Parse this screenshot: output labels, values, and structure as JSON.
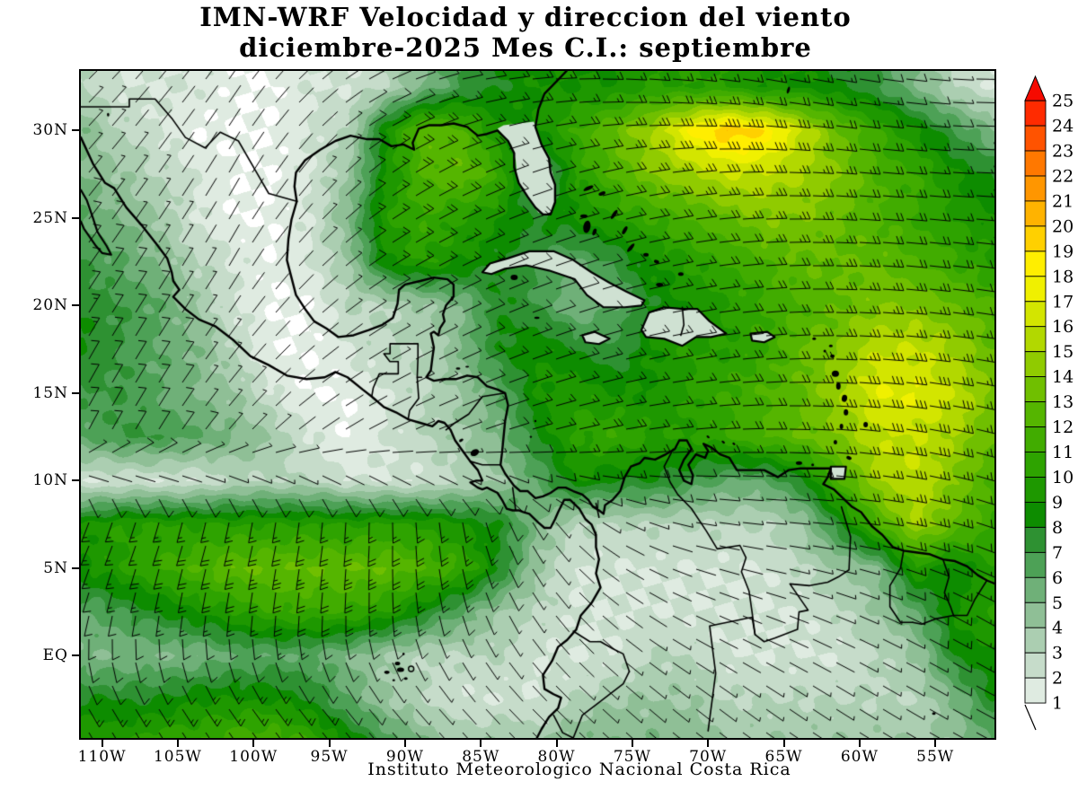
{
  "title": {
    "line1": "IMN-WRF Velocidad y direccion del viento",
    "line2": "diciembre-2025 Mes C.I.: septiembre"
  },
  "footer": {
    "text": "Instituto Meteorologico Nacional Costa Rica"
  },
  "axes": {
    "x_tick_labels": [
      "110W",
      "105W",
      "100W",
      "95W",
      "90W",
      "85W",
      "80W",
      "75W",
      "70W",
      "65W",
      "60W",
      "55W"
    ],
    "x_tick_values": [
      -110,
      -105,
      -100,
      -95,
      -90,
      -85,
      -80,
      -75,
      -70,
      -65,
      -60,
      -55
    ],
    "y_tick_labels": [
      "30N",
      "25N",
      "20N",
      "15N",
      "10N",
      "5N",
      "EQ"
    ],
    "y_tick_values": [
      30,
      25,
      20,
      15,
      10,
      5,
      0
    ]
  },
  "colorbar": {
    "levels": [
      1,
      2,
      3,
      4,
      5,
      6,
      7,
      8,
      9,
      10,
      11,
      12,
      13,
      14,
      15,
      16,
      17,
      18,
      19,
      20,
      21,
      22,
      23,
      24,
      25
    ],
    "segment_colors": {
      "1": "#DFEBE1",
      "2": "#C6DCCA",
      "3": "#ABCEB1",
      "4": "#8FBF96",
      "5": "#6FB078",
      "6": "#4DA156",
      "7": "#2E9132",
      "8": "#0D8C00",
      "9": "#1E9800",
      "10": "#2EA300",
      "11": "#41AC00",
      "12": "#55B500",
      "13": "#70BF00",
      "14": "#90CB00",
      "15": "#B2D800",
      "16": "#D3E500",
      "17": "#F0F000",
      "18": "#FFEE00",
      "19": "#FFD000",
      "20": "#FFB300",
      "21": "#FF9600",
      "22": "#FF7800",
      "23": "#FF5300",
      "24": "#FF2B00"
    },
    "arrow_color": "#F60A00",
    "below_min_color": "#FFFFFF"
  },
  "chart_data": {
    "type": "heatmap",
    "title": "IMN-WRF Velocidad y direccion del viento diciembre-2025 Mes C.I.: septiembre",
    "xlabel": "",
    "ylabel": "",
    "x_range": [
      -111.4,
      -51.1
    ],
    "y_range": [
      -4.7,
      33.4
    ],
    "levels_min": 1,
    "levels_max": 25,
    "grid_lats": [
      32.5,
      30,
      27.5,
      25,
      22.5,
      20,
      17.5,
      15,
      12.5,
      10,
      7.5,
      5,
      2.5,
      0,
      -2.5,
      -5
    ],
    "grid_lons": [
      -111.25,
      -108.75,
      -106.25,
      -103.75,
      -101.25,
      -98.75,
      -96.25,
      -93.75,
      -91.25,
      -88.75,
      -86.25,
      -83.75,
      -81.25,
      -78.75,
      -76.25,
      -73.75,
      -71.25,
      -68.75,
      -66.25,
      -63.75,
      -61.25,
      -58.75,
      -56.25,
      -53.75,
      -51.25
    ],
    "wind_speed": [
      [
        3,
        2,
        2,
        2,
        1,
        1,
        2,
        2,
        3,
        5,
        7,
        8,
        9,
        9,
        9,
        10,
        10,
        10,
        9,
        9,
        8,
        7,
        5,
        3,
        2
      ],
      [
        5,
        3,
        2,
        1,
        1,
        1,
        2,
        3,
        9,
        13,
        12,
        9,
        9,
        11,
        13,
        15,
        18,
        20,
        19,
        16,
        13,
        11,
        9,
        7,
        5
      ],
      [
        5,
        4,
        3,
        2,
        1,
        1,
        2,
        4,
        9,
        12,
        13,
        11,
        5,
        10,
        12,
        14,
        15,
        16,
        16,
        15,
        14,
        12,
        11,
        9,
        8
      ],
      [
        6,
        5,
        4,
        2,
        1,
        1,
        2,
        5,
        10,
        11,
        10,
        9,
        8,
        9,
        10,
        11,
        12,
        13,
        14,
        14,
        13,
        12,
        11,
        10,
        9
      ],
      [
        7,
        6,
        5,
        3,
        2,
        1,
        2,
        4,
        9,
        10,
        9,
        8,
        7,
        6,
        7,
        9,
        10,
        11,
        12,
        13,
        13,
        13,
        12,
        11,
        10
      ],
      [
        8,
        7,
        6,
        4,
        2,
        1,
        1,
        3,
        3,
        4,
        5,
        8,
        7,
        5,
        6,
        8,
        9,
        10,
        11,
        12,
        13,
        14,
        14,
        13,
        12
      ],
      [
        8,
        7,
        6,
        5,
        3,
        1,
        1,
        2,
        3,
        3,
        5,
        8,
        9,
        8,
        7,
        9,
        10,
        10,
        11,
        13,
        14,
        16,
        16,
        15,
        13
      ],
      [
        7,
        7,
        6,
        5,
        4,
        2,
        1,
        1,
        2,
        3,
        4,
        6,
        9,
        10,
        9,
        9,
        10,
        11,
        12,
        13,
        15,
        17,
        17,
        16,
        14
      ],
      [
        6,
        7,
        7,
        6,
        5,
        4,
        2,
        1,
        2,
        3,
        4,
        5,
        8,
        10,
        11,
        10,
        10,
        11,
        12,
        13,
        14,
        16,
        16,
        15,
        13
      ],
      [
        2,
        2,
        2,
        2,
        3,
        3,
        3,
        2,
        2,
        2,
        3,
        4,
        6,
        9,
        8,
        8,
        7,
        6,
        6,
        8,
        12,
        15,
        16,
        14,
        12
      ],
      [
        9,
        10,
        10,
        10,
        10,
        10,
        10,
        10,
        10,
        10,
        9,
        8,
        5,
        3,
        3,
        3,
        3,
        3,
        3,
        4,
        8,
        12,
        15,
        13,
        11
      ],
      [
        9,
        10,
        11,
        12,
        13,
        13,
        13,
        13,
        13,
        12,
        11,
        8,
        4,
        2,
        2,
        2,
        2,
        2,
        2,
        3,
        4,
        5,
        10,
        8,
        10
      ],
      [
        6,
        7,
        8,
        9,
        10,
        11,
        11,
        11,
        10,
        8,
        6,
        4,
        3,
        2,
        2,
        2,
        2,
        2,
        2,
        2,
        3,
        4,
        6,
        9,
        10
      ],
      [
        5,
        5,
        5,
        5,
        6,
        6,
        6,
        5,
        4,
        3,
        3,
        3,
        2,
        2,
        2,
        3,
        3,
        2,
        2,
        2,
        2,
        3,
        4,
        8,
        9
      ],
      [
        8,
        8,
        8,
        9,
        9,
        9,
        8,
        6,
        4,
        3,
        2,
        2,
        2,
        3,
        4,
        4,
        4,
        3,
        3,
        3,
        3,
        3,
        3,
        5,
        8
      ],
      [
        10,
        10,
        11,
        11,
        12,
        12,
        11,
        9,
        7,
        5,
        4,
        4,
        4,
        5,
        5,
        5,
        5,
        4,
        4,
        4,
        4,
        4,
        4,
        4,
        6
      ]
    ],
    "dir_lats": [
      32.5,
      27.5,
      22.5,
      17.5,
      12.5,
      7.5,
      2.5,
      -2.5
    ],
    "dir_lons": [
      -111.25,
      -106.25,
      -101.25,
      -96.25,
      -91.25,
      -86.25,
      -81.25,
      -76.25,
      -71.25,
      -66.25,
      -61.25,
      -56.25,
      -51.25
    ],
    "wind_direction_from_deg": [
      [
        45,
        40,
        35,
        48,
        65,
        78,
        85,
        92,
        96,
        100,
        100,
        96,
        90
      ],
      [
        40,
        35,
        30,
        40,
        55,
        65,
        72,
        78,
        84,
        90,
        95,
        95,
        92
      ],
      [
        35,
        32,
        30,
        45,
        58,
        64,
        70,
        74,
        80,
        86,
        92,
        96,
        98
      ],
      [
        30,
        32,
        38,
        50,
        60,
        65,
        70,
        75,
        80,
        85,
        92,
        96,
        100
      ],
      [
        28,
        32,
        42,
        55,
        65,
        70,
        75,
        80,
        85,
        90,
        95,
        100,
        105
      ],
      [
        205,
        200,
        195,
        190,
        182,
        172,
        148,
        118,
        100,
        95,
        96,
        102,
        110
      ],
      [
        195,
        190,
        188,
        185,
        178,
        163,
        145,
        128,
        115,
        110,
        112,
        116,
        120
      ],
      [
        150,
        148,
        145,
        142,
        140,
        138,
        135,
        132,
        128,
        125,
        122,
        120,
        118
      ]
    ],
    "legend_position": "right",
    "grid_lines": false
  },
  "colors": {
    "background": "#FFFFFF",
    "coastline": "#000000",
    "barb": "#000000",
    "land_fill_pale": "#CFE1D2"
  }
}
